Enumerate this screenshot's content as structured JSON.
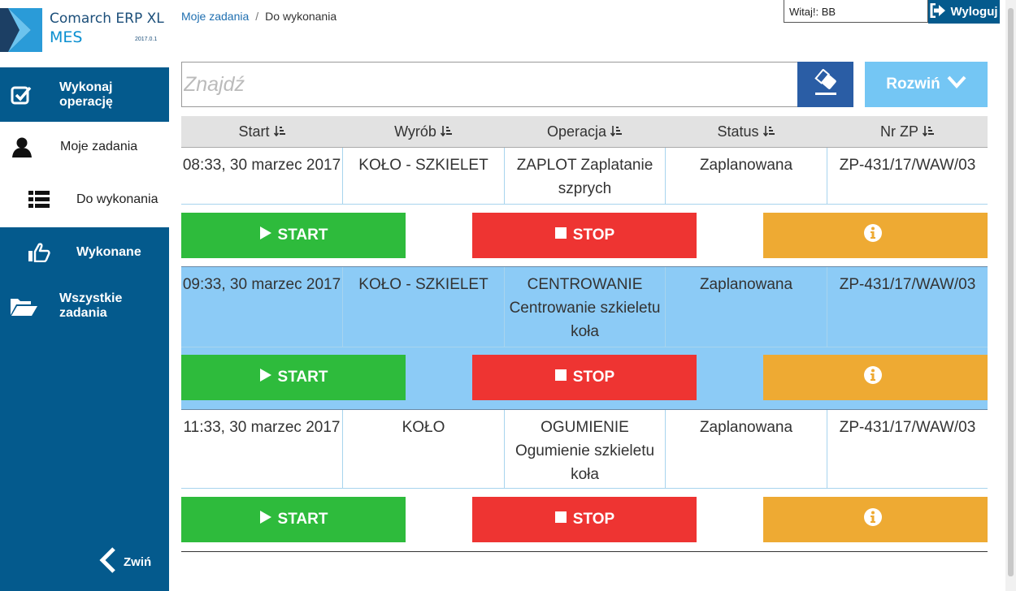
{
  "logo": {
    "line1": "Comarch ERP XL",
    "line2": "MES",
    "version": "2017.0.1"
  },
  "sidebar": {
    "items": [
      {
        "label": "Wykonaj operację",
        "icon": "checkbox-icon"
      },
      {
        "label": "Moje zadania",
        "icon": "user-icon"
      },
      {
        "label": "Do wykonania",
        "icon": "list-icon"
      },
      {
        "label": "Wykonane",
        "icon": "thumbs-up-icon"
      },
      {
        "label": "Wszystkie zadania",
        "icon": "folder-open-icon"
      }
    ],
    "collapse_label": "Zwiń"
  },
  "breadcrumb": {
    "parent": "Moje zadania",
    "current": "Do wykonania"
  },
  "header": {
    "user_greeting": "Witaj!: BB",
    "logout_label": "Wyloguj"
  },
  "search": {
    "placeholder": "Znajdź",
    "value": "",
    "expand_label": "Rozwiń"
  },
  "table": {
    "columns": [
      "Start",
      "Wyrób",
      "Operacja",
      "Status",
      "Nr ZP"
    ],
    "rows": [
      {
        "start": "08:33, 30 marzec 2017",
        "product": "KOŁO - SZKIELET",
        "operation": "ZAPLOT Zaplatanie szprych",
        "status": "Zaplanowana",
        "order": "ZP-431/17/WAW/03"
      },
      {
        "start": "09:33, 30 marzec 2017",
        "product": "KOŁO - SZKIELET",
        "operation": "CENTROWANIE Centrowanie szkieletu koła",
        "status": "Zaplanowana",
        "order": "ZP-431/17/WAW/03"
      },
      {
        "start": "11:33, 30 marzec 2017",
        "product": "KOŁO",
        "operation": "OGUMIENIE Ogumienie szkieletu koła",
        "status": "Zaplanowana",
        "order": "ZP-431/17/WAW/03"
      }
    ]
  },
  "actions": {
    "start_label": "START",
    "stop_label": "STOP"
  },
  "colors": {
    "sidebar": "#045a8d",
    "start": "#2ebb3c",
    "stop": "#ee3432",
    "info": "#eeaa33",
    "selected_row": "#8ccbf6",
    "expand": "#74c6f4",
    "clear": "#2a5da5"
  }
}
